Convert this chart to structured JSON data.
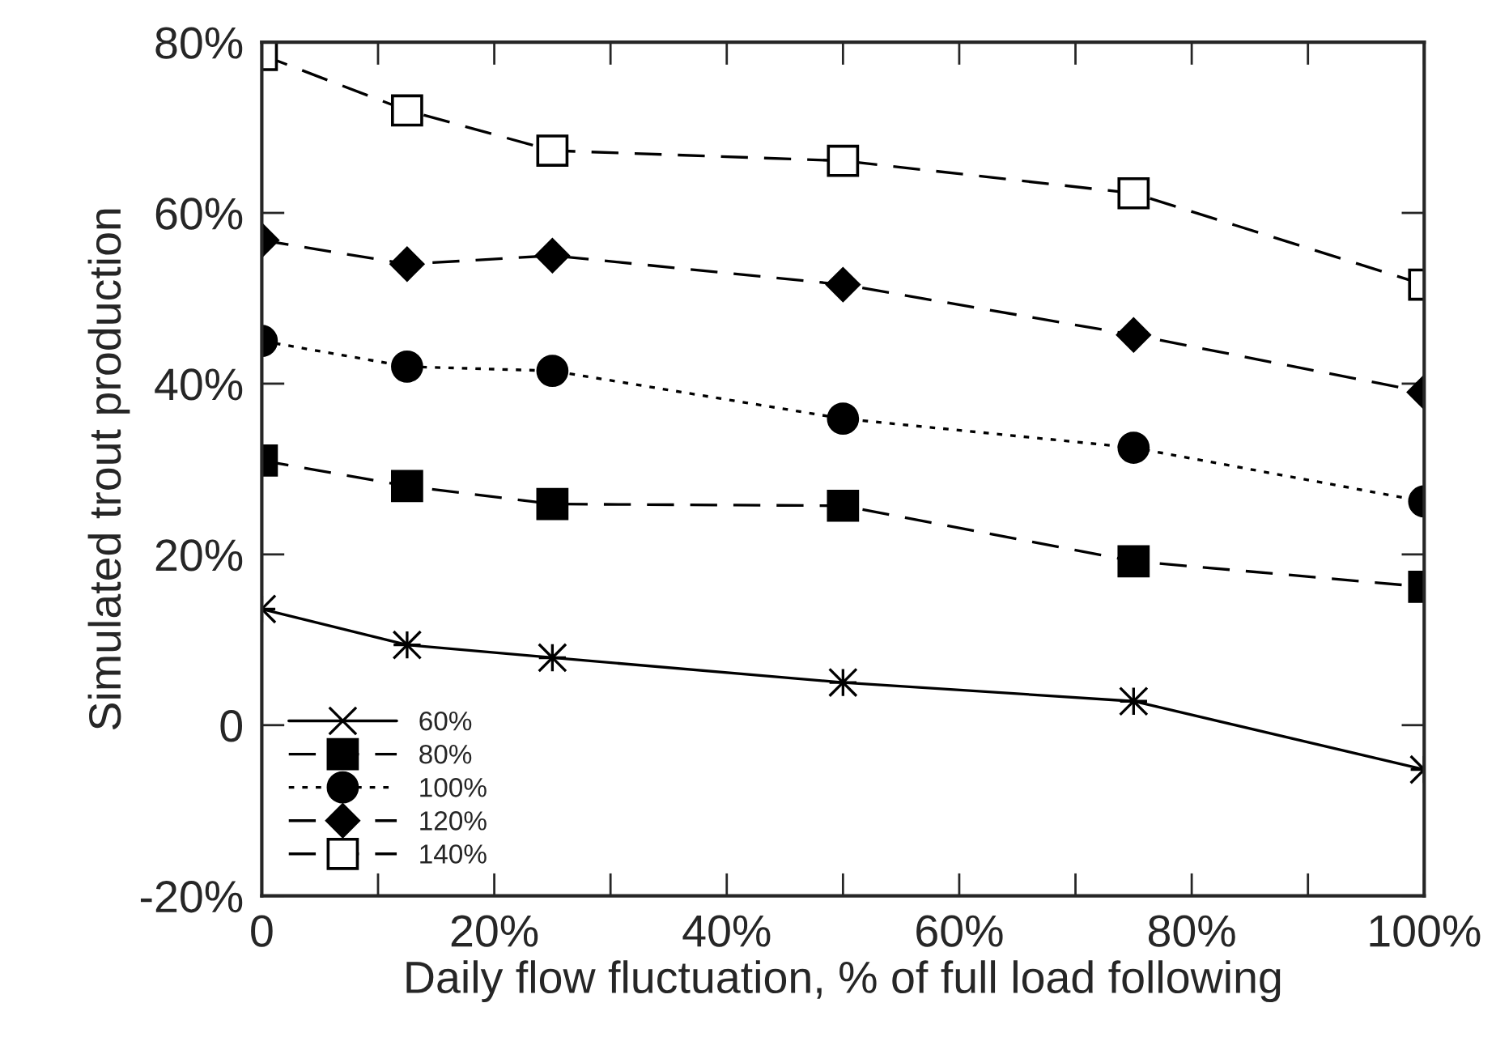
{
  "chart_data": {
    "type": "line",
    "xlabel": "Daily flow fluctuation, % of full load following",
    "ylabel": "Simulated trout production",
    "x": [
      0,
      12.5,
      25,
      50,
      75,
      100
    ],
    "series": [
      {
        "name": "60%",
        "color": "#000000",
        "marker": "cross",
        "line_style": "solid",
        "values": [
          13.6,
          9.4,
          7.9,
          5.0,
          2.8,
          -5.2
        ]
      },
      {
        "name": "80%",
        "color": "#000000",
        "marker": "square",
        "line_style": "dashed",
        "values": [
          31.0,
          28.0,
          25.9,
          25.7,
          19.2,
          16.2
        ]
      },
      {
        "name": "100%",
        "color": "#000000",
        "marker": "circle",
        "line_style": "dotted",
        "values": [
          45.0,
          42.0,
          41.5,
          35.9,
          32.5,
          26.2
        ]
      },
      {
        "name": "120%",
        "color": "#000000",
        "marker": "diamond",
        "line_style": "dashed",
        "values": [
          56.8,
          54.0,
          55.0,
          51.6,
          45.7,
          39.0
        ]
      },
      {
        "name": "140%",
        "color": "#ffffff",
        "marker": "square",
        "line_style": "dashed",
        "values": [
          78.5,
          72.0,
          67.3,
          66.1,
          62.3,
          51.6
        ]
      }
    ],
    "xlim": [
      0,
      100
    ],
    "xticks": [
      {
        "value": 0,
        "label": "0"
      },
      {
        "value": 10,
        "label": null
      },
      {
        "value": 20,
        "label": "20%"
      },
      {
        "value": 30,
        "label": null
      },
      {
        "value": 40,
        "label": "40%"
      },
      {
        "value": 50,
        "label": null
      },
      {
        "value": 60,
        "label": "60%"
      },
      {
        "value": 70,
        "label": null
      },
      {
        "value": 80,
        "label": "80%"
      },
      {
        "value": 90,
        "label": null
      },
      {
        "value": 100,
        "label": "100%"
      }
    ],
    "ylim": [
      -20,
      80
    ],
    "yticks": [
      {
        "value": -20,
        "label": "-20%"
      },
      {
        "value": 0,
        "label": "0"
      },
      {
        "value": 20,
        "label": "20%"
      },
      {
        "value": 40,
        "label": "40%"
      },
      {
        "value": 60,
        "label": "60%"
      },
      {
        "value": 80,
        "label": "80%"
      }
    ],
    "grid": false,
    "legend": "bottom left"
  }
}
